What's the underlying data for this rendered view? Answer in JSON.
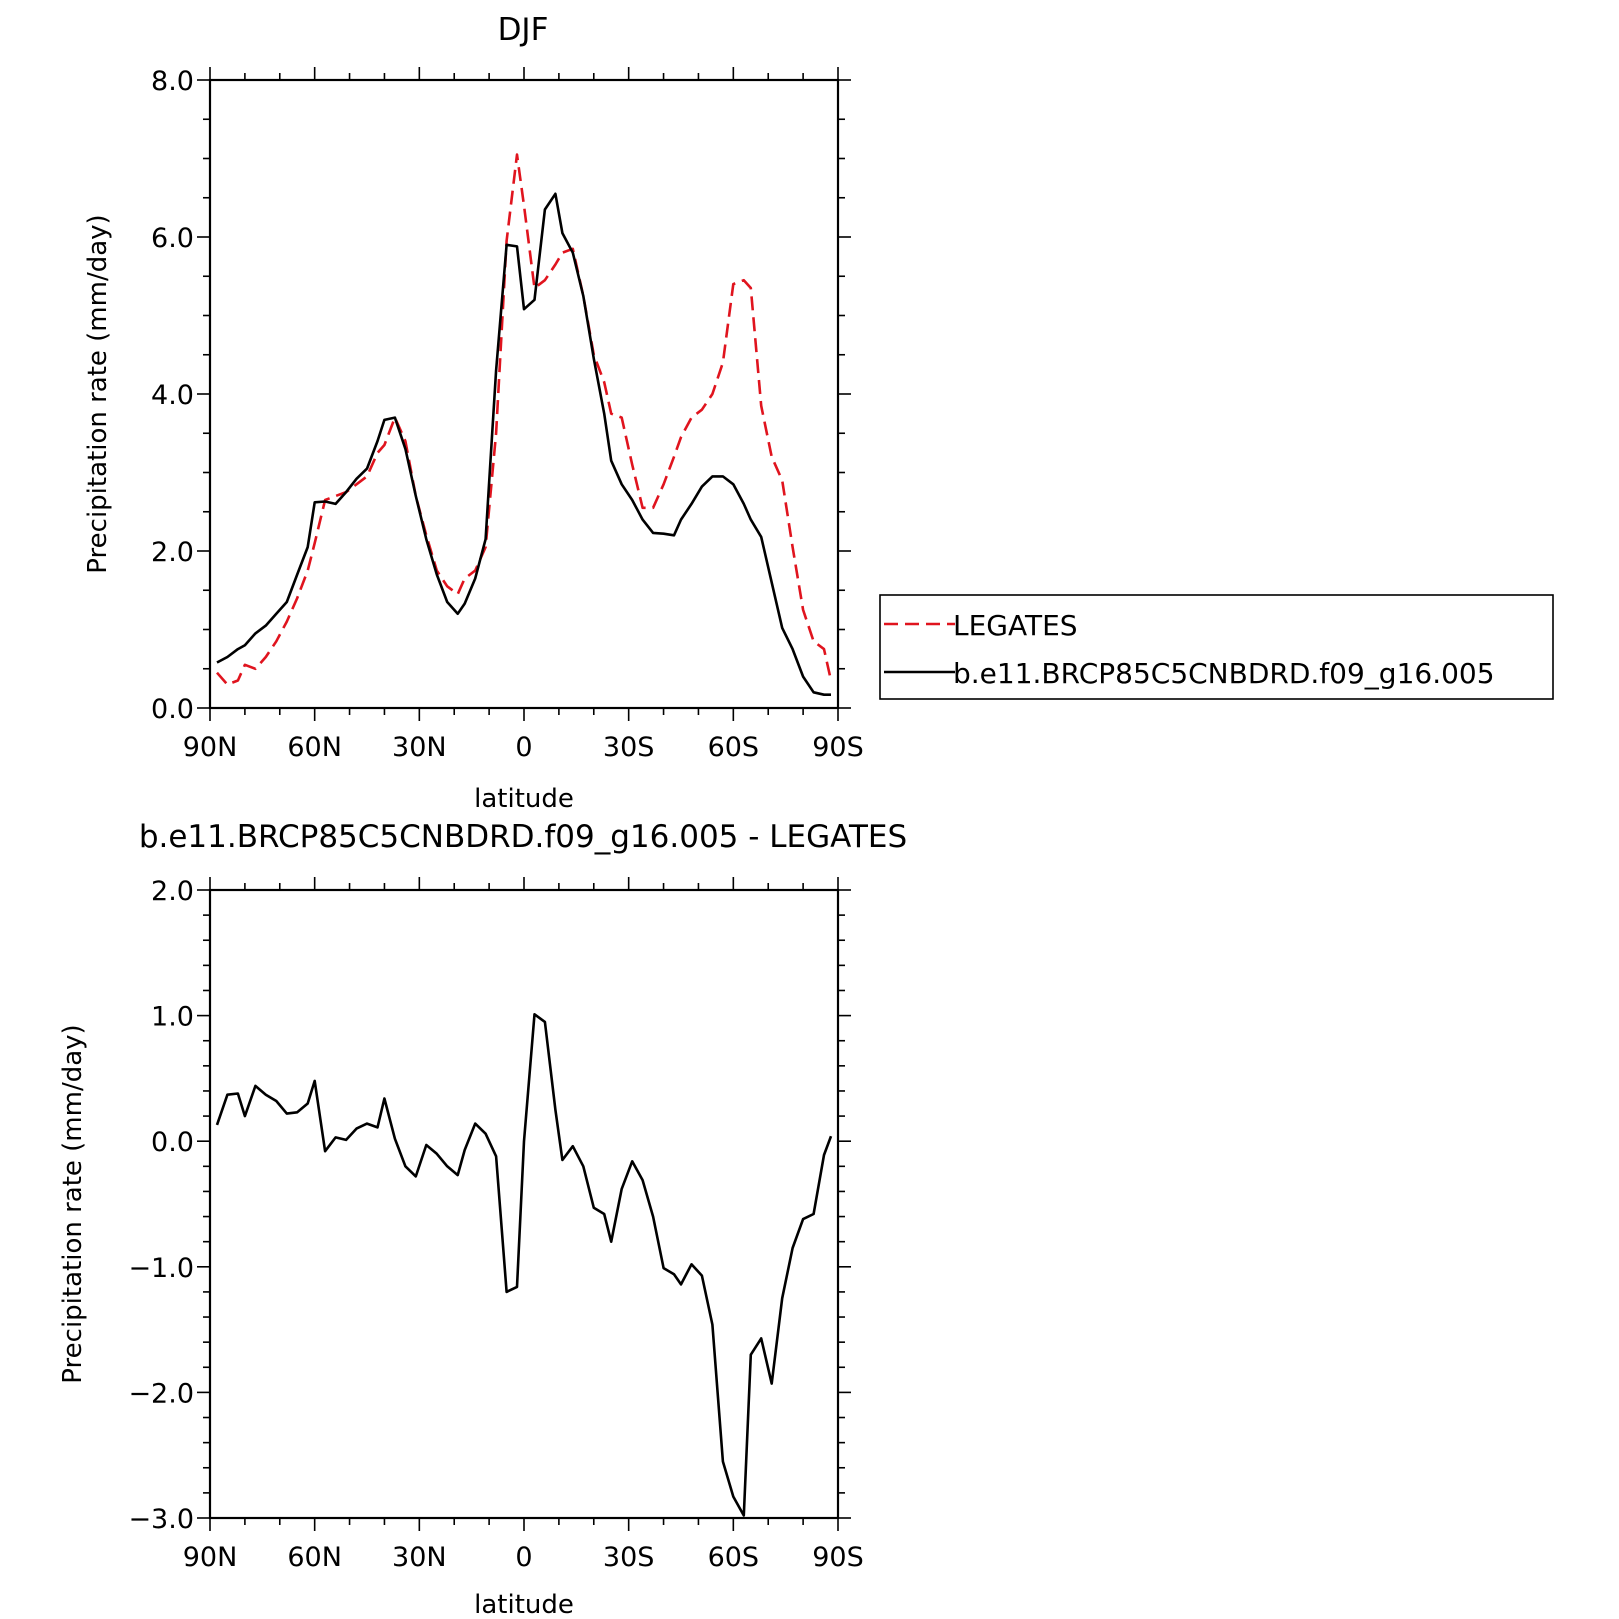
{
  "colors": {
    "model": "#000000",
    "obs": "#e0141e",
    "axis": "#000000",
    "background": "#ffffff"
  },
  "chart_data": [
    {
      "type": "line",
      "title": "DJF",
      "xlabel": "latitude",
      "ylabel": "Precipitation rate (mm/day)",
      "xlim": [
        90,
        -90
      ],
      "ylim": [
        0,
        8
      ],
      "xticks": [
        {
          "v": 90,
          "label": "90N"
        },
        {
          "v": 60,
          "label": "60N"
        },
        {
          "v": 30,
          "label": "30N"
        },
        {
          "v": 0,
          "label": "0"
        },
        {
          "v": -30,
          "label": "30S"
        },
        {
          "v": -60,
          "label": "60S"
        },
        {
          "v": -90,
          "label": "90S"
        }
      ],
      "yticks": [
        {
          "v": 0,
          "label": "0.0"
        },
        {
          "v": 2,
          "label": "2.0"
        },
        {
          "v": 4,
          "label": "4.0"
        },
        {
          "v": 6,
          "label": "6.0"
        },
        {
          "v": 8,
          "label": "8.0"
        }
      ],
      "grid": false,
      "legend": "right",
      "x": [
        88,
        85,
        82,
        80,
        77,
        74,
        71,
        68,
        65,
        62,
        60,
        57,
        54,
        51,
        48,
        45,
        42,
        40,
        37,
        34,
        31,
        28,
        25,
        22,
        19,
        17,
        14,
        11,
        8,
        5,
        2,
        0,
        -3,
        -6,
        -9,
        -11,
        -14,
        -17,
        -20,
        -23,
        -25,
        -28,
        -31,
        -34,
        -37,
        -40,
        -43,
        -45,
        -48,
        -51,
        -54,
        -57,
        -60,
        -63,
        -65,
        -68,
        -71,
        -74,
        -77,
        -80,
        -83,
        -86,
        -88
      ],
      "series": [
        {
          "name": "LEGATES",
          "style": "dashed",
          "color": "#e0141e",
          "values": [
            0.45,
            0.3,
            0.35,
            0.55,
            0.5,
            0.65,
            0.85,
            1.1,
            1.4,
            1.75,
            2.1,
            2.65,
            2.7,
            2.75,
            2.85,
            2.95,
            3.25,
            3.35,
            3.7,
            3.4,
            2.7,
            2.2,
            1.75,
            1.55,
            1.45,
            1.65,
            1.75,
            2.05,
            3.5,
            5.95,
            7.05,
            6.4,
            5.35,
            5.45,
            5.65,
            5.8,
            5.85,
            5.25,
            4.5,
            4.15,
            3.75,
            3.7,
            3.1,
            2.55,
            2.55,
            2.85,
            3.2,
            3.45,
            3.7,
            3.8,
            4.0,
            4.4,
            5.4,
            5.45,
            5.35,
            3.85,
            3.2,
            2.9,
            2.05,
            1.25,
            0.85,
            0.75,
            0.35
          ]
        },
        {
          "name": "b.e11.BRCP85C5CNBDRD.f09_g16.005",
          "style": "solid",
          "color": "#000000",
          "values": [
            0.58,
            0.65,
            0.75,
            0.8,
            0.95,
            1.05,
            1.2,
            1.35,
            1.7,
            2.05,
            2.62,
            2.63,
            2.6,
            2.75,
            2.92,
            3.05,
            3.4,
            3.67,
            3.7,
            3.3,
            2.7,
            2.15,
            1.7,
            1.35,
            1.2,
            1.33,
            1.65,
            2.15,
            4.3,
            5.9,
            5.88,
            5.08,
            5.2,
            6.35,
            6.55,
            6.05,
            5.8,
            5.25,
            4.45,
            3.75,
            3.15,
            2.85,
            2.65,
            2.4,
            2.23,
            2.22,
            2.2,
            2.4,
            2.6,
            2.82,
            2.95,
            2.95,
            2.85,
            2.6,
            2.4,
            2.18,
            1.6,
            1.02,
            0.75,
            0.4,
            0.2,
            0.17,
            0.17
          ]
        }
      ]
    },
    {
      "type": "line",
      "title": "b.e11.BRCP85C5CNBDRD.f09_g16.005 - LEGATES",
      "xlabel": "latitude",
      "ylabel": "Precipitation rate (mm/day)",
      "xlim": [
        90,
        -90
      ],
      "ylim": [
        -3,
        2
      ],
      "xticks": [
        {
          "v": 90,
          "label": "90N"
        },
        {
          "v": 60,
          "label": "60N"
        },
        {
          "v": 30,
          "label": "30N"
        },
        {
          "v": 0,
          "label": "0"
        },
        {
          "v": -30,
          "label": "30S"
        },
        {
          "v": -60,
          "label": "60S"
        },
        {
          "v": -90,
          "label": "90S"
        }
      ],
      "yticks": [
        {
          "v": -3,
          "label": "−3.0"
        },
        {
          "v": -2,
          "label": "−2.0"
        },
        {
          "v": -1,
          "label": "−1.0"
        },
        {
          "v": 0,
          "label": "0.0"
        },
        {
          "v": 1,
          "label": "1.0"
        },
        {
          "v": 2,
          "label": "2.0"
        }
      ],
      "grid": false,
      "x": [
        88,
        85,
        82,
        80,
        77,
        74,
        71,
        68,
        65,
        62,
        60,
        57,
        54,
        51,
        48,
        45,
        42,
        40,
        37,
        34,
        31,
        28,
        25,
        22,
        19,
        17,
        14,
        11,
        8,
        5,
        2,
        0,
        -3,
        -6,
        -9,
        -11,
        -14,
        -17,
        -20,
        -23,
        -25,
        -28,
        -31,
        -34,
        -37,
        -40,
        -43,
        -45,
        -48,
        -51,
        -54,
        -57,
        -60,
        -63,
        -65,
        -68,
        -71,
        -74,
        -77,
        -80,
        -83,
        -86,
        -88
      ],
      "series": [
        {
          "name": "",
          "style": "solid",
          "color": "#000000",
          "values": [
            0.13,
            0.37,
            0.38,
            0.2,
            0.44,
            0.37,
            0.32,
            0.22,
            0.23,
            0.3,
            0.48,
            -0.08,
            0.03,
            0.01,
            0.1,
            0.14,
            0.11,
            0.34,
            0.02,
            -0.2,
            -0.28,
            -0.03,
            -0.1,
            -0.2,
            -0.27,
            -0.07,
            0.14,
            0.06,
            -0.12,
            -1.2,
            -1.16,
            0.0,
            1.01,
            0.95,
            0.25,
            -0.15,
            -0.04,
            -0.2,
            -0.53,
            -0.58,
            -0.8,
            -0.38,
            -0.16,
            -0.31,
            -0.6,
            -1.01,
            -1.06,
            -1.14,
            -0.98,
            -1.07,
            -1.46,
            -2.55,
            -2.83,
            -2.98,
            -1.7,
            -1.57,
            -1.93,
            -1.25,
            -0.85,
            -0.62,
            -0.58,
            -0.11,
            0.04
          ]
        }
      ]
    }
  ]
}
